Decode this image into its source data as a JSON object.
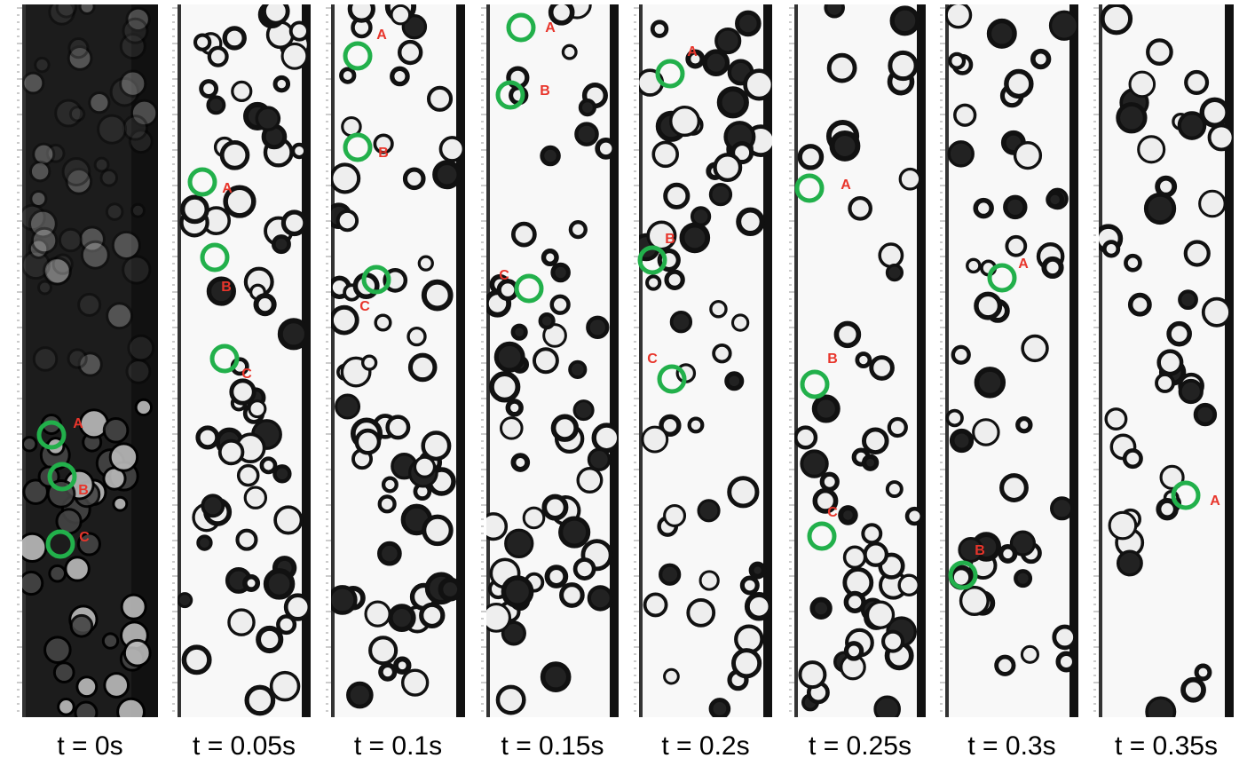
{
  "panels": [
    {
      "label": "t = 0s",
      "markers": [
        {
          "label": "A"
        },
        {
          "label": "B"
        },
        {
          "label": "C"
        }
      ]
    },
    {
      "label": "t = 0.05s",
      "markers": [
        {
          "label": "A"
        },
        {
          "label": "B"
        },
        {
          "label": "C"
        }
      ]
    },
    {
      "label": "t = 0.1s",
      "markers": [
        {
          "label": "A"
        },
        {
          "label": "B"
        },
        {
          "label": "C"
        }
      ]
    },
    {
      "label": "t = 0.15s",
      "markers": [
        {
          "label": "A"
        },
        {
          "label": "B"
        },
        {
          "label": "C"
        }
      ]
    },
    {
      "label": "t = 0.2s",
      "markers": [
        {
          "label": "A"
        },
        {
          "label": "B"
        },
        {
          "label": "C"
        }
      ]
    },
    {
      "label": "t = 0.25s",
      "markers": [
        {
          "label": "A"
        },
        {
          "label": "B"
        },
        {
          "label": "C"
        }
      ]
    },
    {
      "label": "t = 0.3s",
      "markers": [
        {
          "label": "A"
        },
        {
          "label": "B"
        }
      ]
    },
    {
      "label": "t = 0.35s",
      "markers": [
        {
          "label": "A"
        }
      ]
    }
  ]
}
